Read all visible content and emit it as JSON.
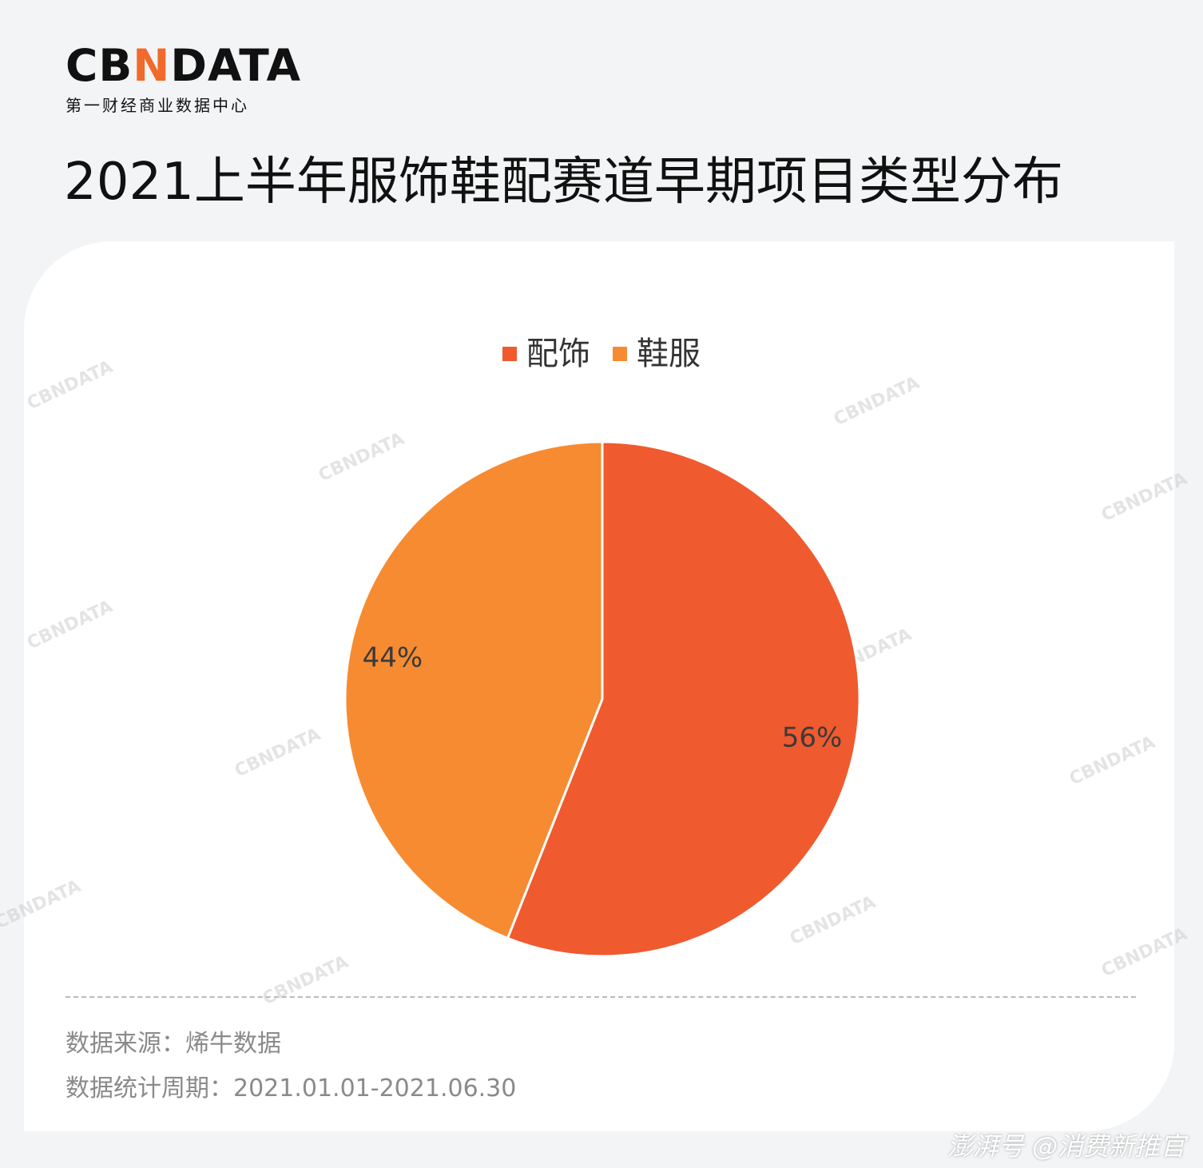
{
  "brand": {
    "logo_text_left": "CB",
    "logo_text_accent": "N",
    "logo_text_right": "DATA",
    "logo_subtitle": "第一财经商业数据中心",
    "accent_color": "#f06a2b"
  },
  "title": "2021上半年服饰鞋配赛道早期项目类型分布",
  "chart_data": {
    "type": "pie",
    "title": "2021上半年服饰鞋配赛道早期项目类型分布",
    "categories": [
      "配饰",
      "鞋服"
    ],
    "values": [
      56,
      44
    ],
    "labels": [
      "56%",
      "44%"
    ],
    "colors": [
      "#f05a2f",
      "#f78b31"
    ],
    "legend_position": "top-center",
    "start_angle": "12 o'clock",
    "direction": "clockwise"
  },
  "footer": {
    "source": "数据来源：烯牛数据",
    "period": "数据统计周期：2021.01.01-2021.06.30",
    "credit": "澎湃号 @消费新推官"
  },
  "watermark": {
    "text": "CBNDATA"
  }
}
